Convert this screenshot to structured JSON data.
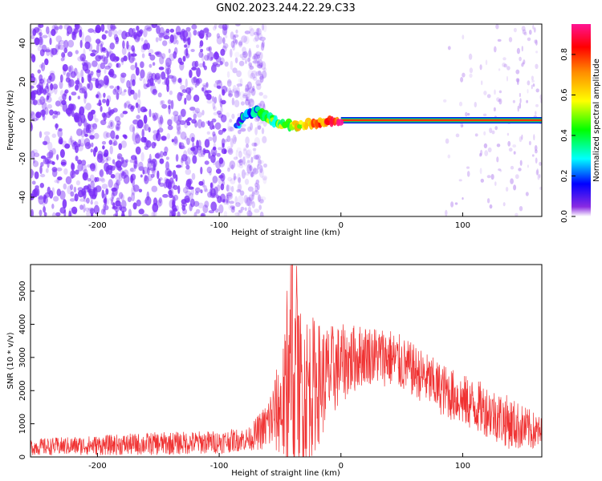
{
  "figure": {
    "title": "GN02.2023.244.22.29.C33"
  },
  "chart_data": [
    {
      "type": "heatmap",
      "xlabel": "Height of straight line (km)",
      "ylabel": "Frequency (Hz)",
      "xlim": [
        -255,
        165
      ],
      "ylim": [
        -50,
        50
      ],
      "xticks": [
        -200,
        -100,
        0,
        100
      ],
      "yticks": [
        -40,
        -20,
        0,
        20,
        40
      ],
      "noise_region_x": [
        -255,
        -70
      ],
      "sparse_noise_region_x": [
        85,
        165
      ],
      "signal_band": {
        "freq_hz": 0,
        "start_x": -85,
        "end_x": 165,
        "onset_points": [
          {
            "x": -85,
            "y": -3
          },
          {
            "x": -80,
            "y": 2
          },
          {
            "x": -72,
            "y": 4
          },
          {
            "x": -68,
            "y": 5
          },
          {
            "x": -62,
            "y": 2
          },
          {
            "x": -55,
            "y": 0
          },
          {
            "x": -48,
            "y": -2
          },
          {
            "x": -40,
            "y": -3
          },
          {
            "x": -30,
            "y": -2
          },
          {
            "x": -20,
            "y": -1
          },
          {
            "x": -10,
            "y": 0
          },
          {
            "x": 0,
            "y": 0
          }
        ]
      },
      "colorbar": {
        "label": "Normalized spectral amplitude",
        "ticks": [
          "0.0",
          "0.2",
          "0.4",
          "0.6",
          "0.8"
        ],
        "range": [
          0,
          0.95
        ],
        "scheme": "rainbow-violet-to-magenta"
      },
      "colors": {
        "noise": "#7b2ff7",
        "band_core": "#ff3300",
        "band_edge": "#0033ff"
      }
    },
    {
      "type": "line",
      "xlabel": "Height of straight line (km)",
      "ylabel": "SNR (10 * v/v)",
      "xlim": [
        -255,
        165
      ],
      "ylim": [
        0,
        5800
      ],
      "xticks": [
        -200,
        -100,
        0,
        100
      ],
      "yticks": [
        0,
        1000,
        2000,
        3000,
        4000,
        5000
      ],
      "color": "#f03232",
      "envelope": [
        {
          "x": -255,
          "base": 300,
          "amp": 250
        },
        {
          "x": -200,
          "base": 350,
          "amp": 300
        },
        {
          "x": -150,
          "base": 400,
          "amp": 350
        },
        {
          "x": -100,
          "base": 450,
          "amp": 350
        },
        {
          "x": -75,
          "base": 550,
          "amp": 350
        },
        {
          "x": -62,
          "base": 900,
          "amp": 700
        },
        {
          "x": -50,
          "base": 1500,
          "amp": 1500
        },
        {
          "x": -40,
          "base": 1800,
          "amp": 3200
        },
        {
          "x": -30,
          "base": 2000,
          "amp": 2500
        },
        {
          "x": -15,
          "base": 2300,
          "amp": 1700
        },
        {
          "x": 0,
          "base": 2800,
          "amp": 1200
        },
        {
          "x": 20,
          "base": 3100,
          "amp": 900
        },
        {
          "x": 40,
          "base": 3000,
          "amp": 900
        },
        {
          "x": 60,
          "base": 2600,
          "amp": 800
        },
        {
          "x": 80,
          "base": 2100,
          "amp": 800
        },
        {
          "x": 100,
          "base": 1700,
          "amp": 800
        },
        {
          "x": 120,
          "base": 1400,
          "amp": 800
        },
        {
          "x": 140,
          "base": 1000,
          "amp": 800
        },
        {
          "x": 165,
          "base": 700,
          "amp": 500
        }
      ],
      "peak": {
        "x": -40,
        "y": 5800
      }
    }
  ]
}
